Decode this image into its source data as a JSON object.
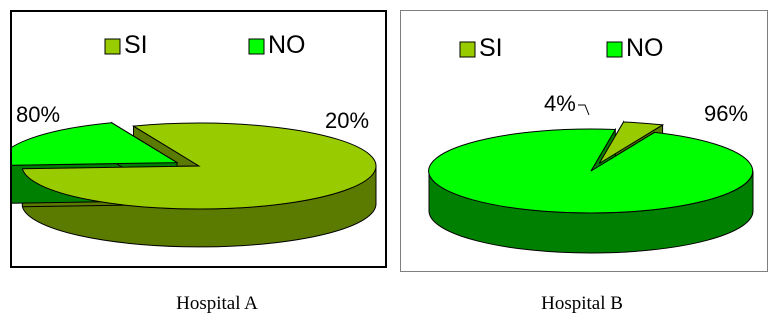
{
  "chart_data": [
    {
      "type": "pie",
      "style": "3d-exploded",
      "title": "",
      "caption": "Hospital A",
      "legend_position": "top",
      "categories": [
        "SI",
        "NO"
      ],
      "values": [
        80,
        20
      ],
      "value_labels": [
        "80%",
        "20%"
      ],
      "exploded": "NO",
      "colors": {
        "SI": "#99cc00",
        "NO": "#00ff00",
        "SI_side": "#5b7a00",
        "NO_side": "#008000"
      }
    },
    {
      "type": "pie",
      "style": "3d-exploded",
      "title": "",
      "caption": "Hospital B",
      "legend_position": "top",
      "categories": [
        "SI",
        "NO"
      ],
      "values": [
        4,
        96
      ],
      "value_labels": [
        "4%",
        "96%"
      ],
      "exploded": "SI",
      "colors": {
        "SI": "#99cc00",
        "NO": "#00ff00",
        "SI_side": "#5b7a00",
        "NO_side": "#008000"
      }
    }
  ]
}
